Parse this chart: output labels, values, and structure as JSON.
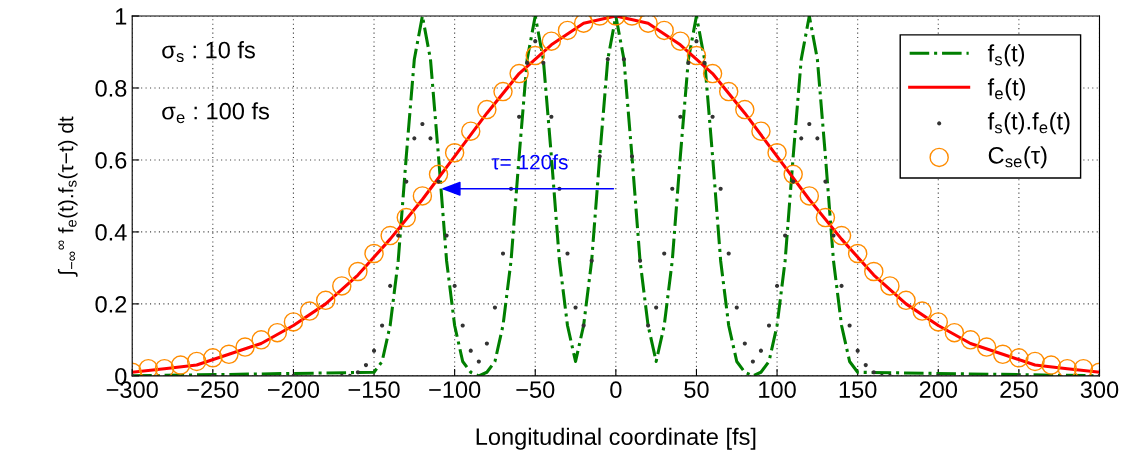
{
  "chart_data": {
    "type": "line",
    "xlabel": "Longitudinal coordinate [fs]",
    "ylabel": "∫$_{−∞}$$^{∞}$ f$_{e}$(t).f$_{s}$(τ−t) dt",
    "xlim": [
      -300,
      300
    ],
    "ylim": [
      0,
      1
    ],
    "xticks": [
      {
        "value": -300,
        "label": "−300"
      },
      {
        "value": -250,
        "label": "−250"
      },
      {
        "value": -200,
        "label": "−200"
      },
      {
        "value": -150,
        "label": "−150"
      },
      {
        "value": -100,
        "label": "−100"
      },
      {
        "value": -50,
        "label": "−50"
      },
      0,
      50,
      100,
      150,
      200,
      250,
      300
    ],
    "yticks": [
      0,
      0.2,
      0.4,
      0.6,
      0.8,
      1
    ],
    "grid": true,
    "legend": "top right",
    "annotations": [
      "σ$_{s}$ : 10 fs",
      "σ$_{e}$ : 100 fs",
      {
        "text": "τ= 120fs",
        "x": -110,
        "y": 0.52
      }
    ],
    "series": [
      {
        "name": "f$_{s}$(t)",
        "color": "#007f00",
        "line_style": "dashdot",
        "x": [
          -300,
          -150,
          -145,
          -140,
          -135,
          -130,
          -125,
          -120,
          -115,
          -110,
          -105,
          -100,
          -95,
          -90,
          -85,
          -80,
          -75,
          -70,
          -65,
          -60,
          -55,
          -50,
          -45,
          -40,
          -35,
          -30,
          -25,
          -20,
          -15,
          -10,
          -5,
          0,
          5,
          10,
          15,
          20,
          25,
          30,
          35,
          40,
          45,
          50,
          55,
          60,
          65,
          70,
          75,
          80,
          85,
          90,
          95,
          100,
          105,
          110,
          115,
          120,
          125,
          130,
          135,
          140,
          145,
          150,
          300
        ],
        "values": [
          0,
          0.01,
          0.04,
          0.14,
          0.32,
          0.61,
          0.88,
          1,
          0.88,
          0.61,
          0.32,
          0.14,
          0.04,
          0.01,
          0,
          0.01,
          0.04,
          0.14,
          0.32,
          0.61,
          0.88,
          1,
          0.88,
          0.61,
          0.32,
          0.14,
          0.04,
          0.14,
          0.32,
          0.61,
          0.88,
          1,
          0.88,
          0.61,
          0.32,
          0.14,
          0.04,
          0.14,
          0.32,
          0.61,
          0.88,
          1,
          0.88,
          0.61,
          0.32,
          0.14,
          0.04,
          0.01,
          0,
          0.01,
          0.04,
          0.14,
          0.32,
          0.61,
          0.88,
          1,
          0.88,
          0.61,
          0.32,
          0.14,
          0.04,
          0.01,
          0
        ]
      },
      {
        "name": "f$_{e}$(t)",
        "color": "#ff0000",
        "line_style": "solid",
        "x": [
          -300,
          -280,
          -260,
          -240,
          -220,
          -200,
          -180,
          -160,
          -140,
          -120,
          -100,
          -80,
          -60,
          -40,
          -20,
          0,
          20,
          40,
          60,
          80,
          100,
          120,
          140,
          160,
          180,
          200,
          220,
          240,
          260,
          280,
          300
        ],
        "values": [
          0.01,
          0.02,
          0.03,
          0.06,
          0.09,
          0.14,
          0.2,
          0.28,
          0.38,
          0.49,
          0.61,
          0.73,
          0.84,
          0.92,
          0.98,
          1,
          0.98,
          0.92,
          0.84,
          0.73,
          0.61,
          0.49,
          0.38,
          0.28,
          0.2,
          0.14,
          0.09,
          0.06,
          0.03,
          0.02,
          0.01
        ]
      },
      {
        "name": "f$_{s}$(t).f$_{e}$(t)",
        "type": "scatter",
        "color": "#333333",
        "marker": "point",
        "x": [
          -300,
          -250,
          -200,
          -170,
          -165,
          -160,
          -155,
          -150,
          -145,
          -140,
          -135,
          -130,
          -125,
          -120,
          -115,
          -110,
          -105,
          -100,
          -95,
          -90,
          -85,
          -80,
          -75,
          -70,
          -65,
          -60,
          -55,
          -50,
          -45,
          -40,
          -35,
          -30,
          -25,
          -20,
          -15,
          -10,
          -5,
          0,
          5,
          10,
          15,
          20,
          25,
          30,
          35,
          40,
          45,
          50,
          55,
          60,
          65,
          70,
          75,
          80,
          85,
          90,
          95,
          100,
          105,
          110,
          115,
          120,
          125,
          130,
          135,
          140,
          145,
          150,
          155,
          160,
          165,
          170,
          200,
          250,
          300
        ],
        "values": [
          0,
          0,
          0,
          0,
          0,
          0.01,
          0.03,
          0.07,
          0.14,
          0.25,
          0.39,
          0.54,
          0.66,
          0.7,
          0.66,
          0.54,
          0.39,
          0.25,
          0.14,
          0.07,
          0.04,
          0.09,
          0.19,
          0.34,
          0.52,
          0.72,
          0.87,
          0.93,
          0.87,
          0.72,
          0.52,
          0.34,
          0.19,
          0.14,
          0.32,
          0.61,
          0.88,
          1,
          0.88,
          0.61,
          0.32,
          0.14,
          0.19,
          0.34,
          0.52,
          0.72,
          0.87,
          0.93,
          0.87,
          0.72,
          0.52,
          0.34,
          0.19,
          0.09,
          0.04,
          0.07,
          0.14,
          0.25,
          0.39,
          0.54,
          0.66,
          0.7,
          0.66,
          0.54,
          0.39,
          0.25,
          0.14,
          0.07,
          0.03,
          0.01,
          0,
          0,
          0,
          0,
          0
        ]
      },
      {
        "name": "C$_{se}$(τ)",
        "type": "scatter",
        "color": "#ff8c00",
        "marker": "circle",
        "x": [
          -300,
          -290,
          -280,
          -270,
          -260,
          -250,
          -240,
          -230,
          -220,
          -210,
          -200,
          -190,
          -180,
          -170,
          -160,
          -150,
          -140,
          -130,
          -120,
          -110,
          -100,
          -90,
          -80,
          -70,
          -60,
          -50,
          -40,
          -30,
          -20,
          -10,
          0,
          10,
          20,
          30,
          40,
          50,
          60,
          70,
          80,
          90,
          100,
          110,
          120,
          130,
          140,
          150,
          160,
          170,
          180,
          190,
          200,
          210,
          220,
          230,
          240,
          250,
          260,
          270,
          280,
          290,
          300
        ],
        "values": [
          0.01,
          0.02,
          0.02,
          0.03,
          0.04,
          0.05,
          0.06,
          0.08,
          0.1,
          0.12,
          0.15,
          0.18,
          0.21,
          0.25,
          0.29,
          0.34,
          0.39,
          0.44,
          0.5,
          0.56,
          0.62,
          0.68,
          0.74,
          0.79,
          0.84,
          0.89,
          0.93,
          0.96,
          0.98,
          1,
          1,
          1,
          0.98,
          0.96,
          0.93,
          0.89,
          0.84,
          0.79,
          0.74,
          0.68,
          0.62,
          0.56,
          0.5,
          0.44,
          0.39,
          0.34,
          0.29,
          0.25,
          0.21,
          0.18,
          0.15,
          0.12,
          0.1,
          0.08,
          0.06,
          0.05,
          0.04,
          0.03,
          0.02,
          0.02,
          0.01
        ]
      }
    ]
  }
}
